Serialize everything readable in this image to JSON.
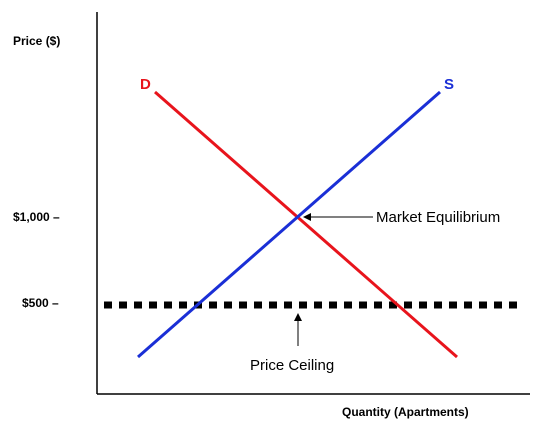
{
  "axes": {
    "y_label": "Price ($)",
    "x_label": "Quantity (Apartments)",
    "y_ticks": [
      "$1,000 –",
      "$500 –"
    ]
  },
  "curves": {
    "demand": "D",
    "supply": "S"
  },
  "annotations": {
    "equilibrium": "Market Equilibrium",
    "ceiling": "Price Ceiling"
  }
}
